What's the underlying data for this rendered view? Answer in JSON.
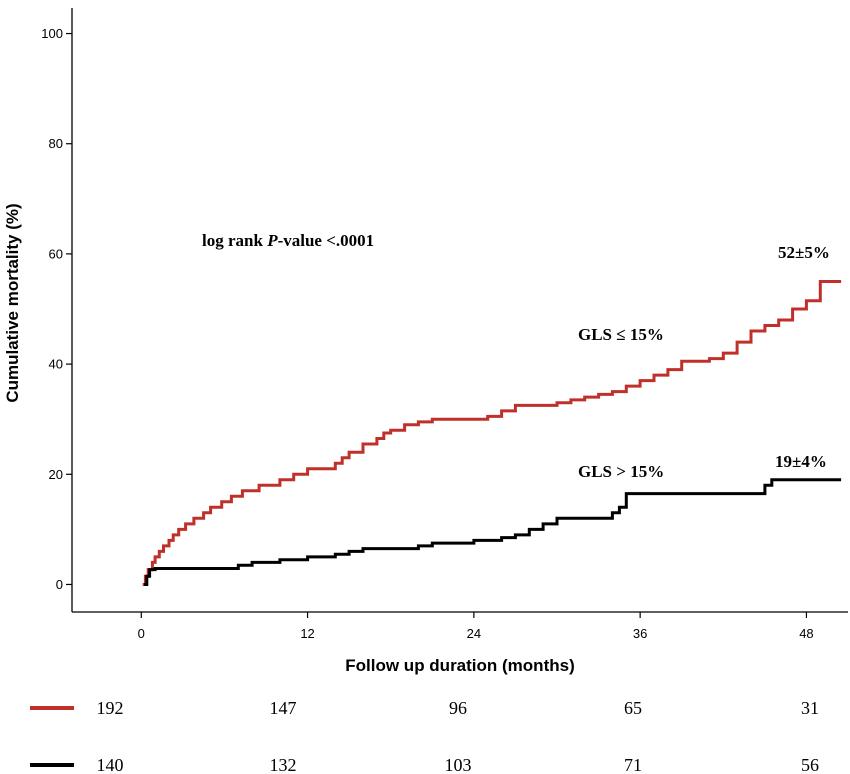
{
  "chart_data": {
    "type": "line",
    "xlabel": "Follow up duration (months)",
    "ylabel": "Cumulative mortality (%)",
    "xlim": [
      -5,
      51
    ],
    "ylim": [
      -5,
      105
    ],
    "x_ticks": [
      0,
      12,
      24,
      36,
      48
    ],
    "y_ticks": [
      0,
      20,
      40,
      60,
      80,
      100
    ],
    "grid": false,
    "step": true,
    "series": [
      {
        "name": "GLS ≤ 15%",
        "color": "#c0302a",
        "end_label": "52±5%",
        "points": [
          [
            0.1,
            0
          ],
          [
            0.3,
            1.5
          ],
          [
            0.5,
            2.7
          ],
          [
            0.8,
            4
          ],
          [
            1,
            5
          ],
          [
            1.3,
            6
          ],
          [
            1.6,
            7
          ],
          [
            2,
            8
          ],
          [
            2.3,
            9
          ],
          [
            2.7,
            10
          ],
          [
            3.2,
            11
          ],
          [
            3.8,
            12
          ],
          [
            4.5,
            13
          ],
          [
            5,
            14
          ],
          [
            5.8,
            15
          ],
          [
            6.5,
            16
          ],
          [
            7.3,
            17
          ],
          [
            8.5,
            18
          ],
          [
            10,
            19
          ],
          [
            11,
            20
          ],
          [
            12,
            21
          ],
          [
            14,
            22
          ],
          [
            14.5,
            23
          ],
          [
            15,
            24
          ],
          [
            16,
            25.5
          ],
          [
            17,
            26.5
          ],
          [
            17.5,
            27.5
          ],
          [
            18,
            28
          ],
          [
            19,
            29
          ],
          [
            20,
            29.5
          ],
          [
            21,
            30
          ],
          [
            25,
            30.5
          ],
          [
            26,
            31.5
          ],
          [
            27,
            32.5
          ],
          [
            29,
            32.5
          ],
          [
            30,
            33
          ],
          [
            31,
            33.5
          ],
          [
            32,
            34
          ],
          [
            33,
            34.5
          ],
          [
            34,
            35
          ],
          [
            35,
            36
          ],
          [
            36,
            37
          ],
          [
            37,
            38
          ],
          [
            38,
            39
          ],
          [
            39,
            40.5
          ],
          [
            41,
            41
          ],
          [
            42,
            42
          ],
          [
            43,
            44
          ],
          [
            44,
            46
          ],
          [
            45,
            47
          ],
          [
            46,
            48
          ],
          [
            47,
            50
          ],
          [
            48,
            51.5
          ],
          [
            49,
            55
          ],
          [
            50.5,
            55
          ]
        ]
      },
      {
        "name": "GLS > 15%",
        "color": "#000000",
        "end_label": "19±4%",
        "points": [
          [
            0.2,
            0
          ],
          [
            0.4,
            1.5
          ],
          [
            0.6,
            2.7
          ],
          [
            1,
            2.9
          ],
          [
            5,
            2.9
          ],
          [
            7,
            3.5
          ],
          [
            8,
            4
          ],
          [
            10,
            4.5
          ],
          [
            12,
            5
          ],
          [
            14,
            5.5
          ],
          [
            15,
            6
          ],
          [
            16,
            6.5
          ],
          [
            20,
            7
          ],
          [
            21,
            7.5
          ],
          [
            24,
            8
          ],
          [
            26,
            8.5
          ],
          [
            27,
            9
          ],
          [
            28,
            10
          ],
          [
            29,
            11
          ],
          [
            30,
            12
          ],
          [
            33,
            12
          ],
          [
            34,
            13
          ],
          [
            34.5,
            14
          ],
          [
            35,
            16.5
          ],
          [
            44,
            16.5
          ],
          [
            45,
            18
          ],
          [
            45.5,
            19
          ],
          [
            50.5,
            19
          ]
        ]
      }
    ],
    "annotations": {
      "logrank_prefix": "log rank ",
      "logrank_p": "P",
      "logrank_suffix": "-value <.0001"
    }
  },
  "risk_table": {
    "rows": [
      {
        "color": "#c0302a",
        "counts": [
          "192",
          "147",
          "96",
          "65",
          "31"
        ]
      },
      {
        "color": "#000000",
        "counts": [
          "140",
          "132",
          "103",
          "71",
          "56"
        ]
      }
    ]
  }
}
